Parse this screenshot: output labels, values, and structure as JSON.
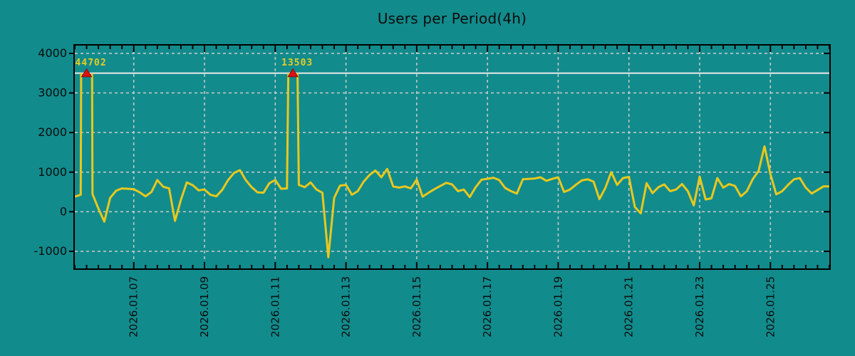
{
  "title": "Users per Period(4h)",
  "colors": {
    "background": "#128b8c",
    "line": "#e8c81e",
    "grid": "#cccccc",
    "frame": "#000000",
    "clip_line": "#e9e9e9",
    "marker_fill": "#dd1111",
    "marker_edge": "#8a0c0c",
    "text": "#0c0c0c",
    "peak_label": "#e8cc22"
  },
  "chart_data": {
    "type": "line",
    "title": "Users per Period(4h)",
    "x_start": "2026-01-05 08:00",
    "interval_hours": 4,
    "ylim": [
      -1450,
      4215
    ],
    "y_ticks": [
      -1000,
      0,
      1000,
      2000,
      3000,
      4000
    ],
    "clip_level": 3500,
    "grid": true,
    "legend_position": "none",
    "x_tick_labels": [
      "2026.01.07",
      "2026.01.09",
      "2026.01.11",
      "2026.01.13",
      "2026.01.15",
      "2026.01.17",
      "2026.01.19",
      "2026.01.21",
      "2026.01.23",
      "2026.01.25"
    ],
    "x_tick_indices": [
      10,
      22,
      34,
      46,
      58,
      70,
      82,
      94,
      106,
      118
    ],
    "minor_tick_every_points": 2,
    "markers": [
      {
        "index": 2,
        "label": "44702"
      },
      {
        "index": 37,
        "label": "13503"
      }
    ],
    "values": [
      380,
      430,
      44702,
      450,
      80,
      -250,
      350,
      530,
      590,
      580,
      570,
      490,
      390,
      500,
      800,
      630,
      590,
      -230,
      300,
      740,
      670,
      540,
      560,
      430,
      390,
      550,
      800,
      980,
      1050,
      800,
      620,
      490,
      480,
      720,
      800,
      580,
      590,
      13503,
      680,
      620,
      740,
      560,
      480,
      -1150,
      350,
      660,
      680,
      430,
      520,
      760,
      930,
      1040,
      870,
      1080,
      640,
      610,
      640,
      590,
      810,
      380,
      480,
      570,
      650,
      730,
      690,
      520,
      560,
      370,
      620,
      810,
      830,
      860,
      800,
      600,
      520,
      460,
      820,
      830,
      840,
      870,
      780,
      830,
      870,
      500,
      560,
      680,
      790,
      820,
      760,
      320,
      600,
      1000,
      680,
      850,
      880,
      120,
      -40,
      720,
      470,
      620,
      690,
      520,
      560,
      700,
      520,
      160,
      890,
      310,
      340,
      850,
      610,
      700,
      650,
      390,
      520,
      820,
      1030,
      1650,
      950,
      440,
      520,
      680,
      820,
      850,
      610,
      460,
      550,
      640,
      640
    ]
  }
}
